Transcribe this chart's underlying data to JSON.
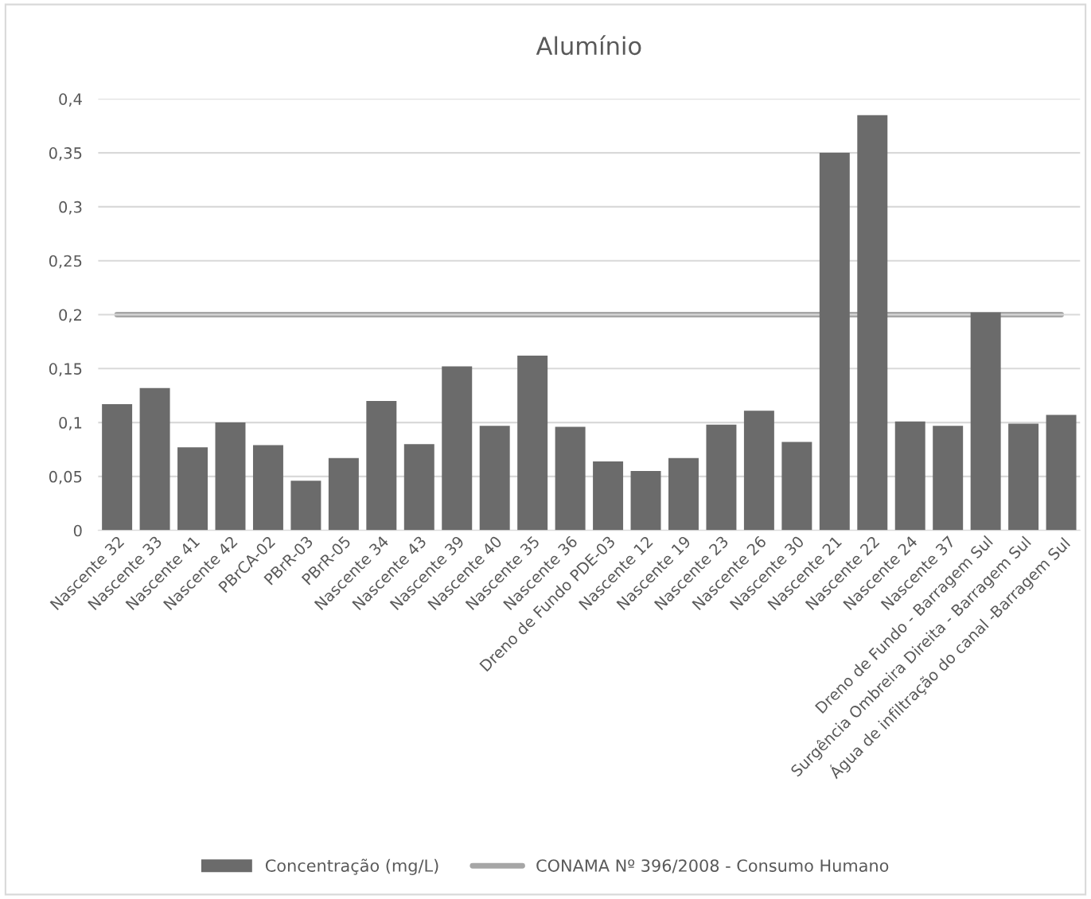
{
  "chart_data": {
    "type": "bar",
    "title": "Alumínio",
    "categories": [
      "Nascente 32",
      "Nascente 33",
      "Nascente 41",
      "Nascente 42",
      "PBrCA-02",
      "PBrR-03",
      "PBrR-05",
      "Nascente 34",
      "Nascente 43",
      "Nascente 39",
      "Nascente 40",
      "Nascente 35",
      "Nascente 36",
      "Dreno de Fundo PDE-03",
      "Nascente 12",
      "Nascente 19",
      "Nascente 23",
      "Nascente 26",
      "Nascente 30",
      "Nascente 21",
      "Nascente 22",
      "Nascente 24",
      "Nascente 37",
      "Dreno de Fundo - Barragem Sul",
      "Surgência Ombreira Direita - Barragem Sul",
      "Água de infiltração do canal -Barragem Sul"
    ],
    "series": [
      {
        "name": "Concentração (mg/L)",
        "color": "#6b6b6b",
        "values": [
          0.117,
          0.132,
          0.077,
          0.1,
          0.079,
          0.046,
          0.067,
          0.12,
          0.08,
          0.152,
          0.097,
          0.162,
          0.096,
          0.064,
          0.055,
          0.067,
          0.098,
          0.111,
          0.082,
          0.35,
          0.385,
          0.101,
          0.097,
          0.202,
          0.099,
          0.107
        ]
      }
    ],
    "ref_lines": [
      {
        "axis": "y",
        "value": 0.2,
        "label": "CONAMA Nº 396/2008 - Consumo Humano",
        "color": "#a6a6a6",
        "line_style": "solid"
      }
    ],
    "ylim": [
      0,
      0.4
    ],
    "yticks": [
      0,
      {
        "value": 0.05,
        "label": "0,05"
      },
      {
        "value": 0.1,
        "label": "0,1"
      },
      {
        "value": 0.15,
        "label": "0,15"
      },
      {
        "value": 0.2,
        "label": "0,2"
      },
      {
        "value": 0.25,
        "label": "0,25"
      },
      {
        "value": 0.3,
        "label": "0,3"
      },
      {
        "value": 0.35,
        "label": "0,35"
      },
      {
        "value": 0.4,
        "label": "0,4"
      }
    ],
    "grid": "y",
    "legend": "bottom"
  }
}
